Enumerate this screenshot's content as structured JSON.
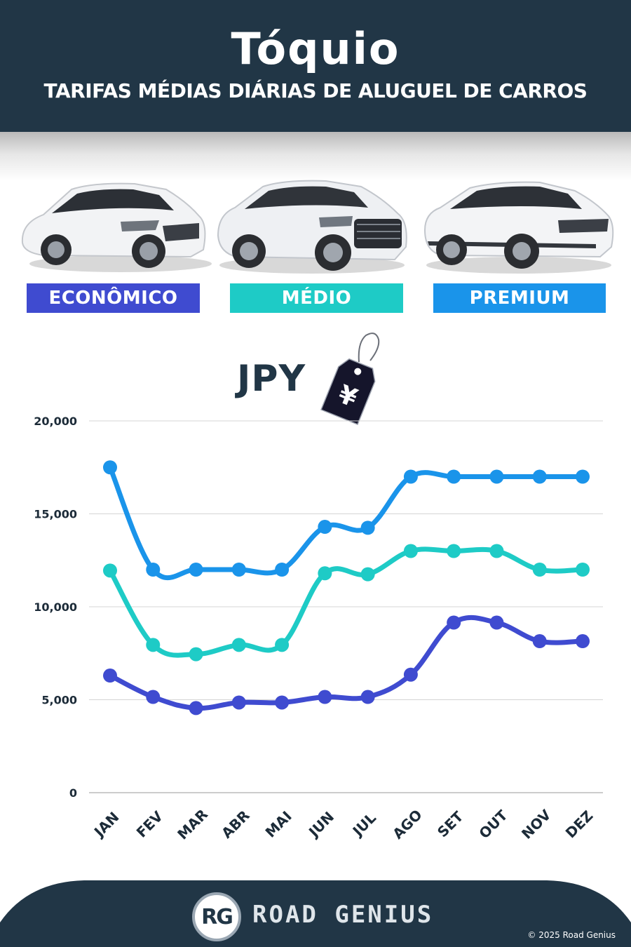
{
  "header": {
    "city": "Tóquio",
    "subtitle": "TARIFAS MÉDIAS DIÁRIAS DE ALUGUEL DE CARROS"
  },
  "categories": [
    {
      "label": "ECONÔMICO",
      "color": "#3f4bd0"
    },
    {
      "label": "MÉDIO",
      "color": "#1ecbc6"
    },
    {
      "label": "PREMIUM",
      "color": "#1a94ea"
    }
  ],
  "currency": {
    "label": "JPY",
    "symbol": "¥"
  },
  "chart_data": {
    "type": "line",
    "x": [
      "JAN",
      "FEV",
      "MAR",
      "ABR",
      "MAI",
      "JUN",
      "JUL",
      "AGO",
      "SET",
      "OUT",
      "NOV",
      "DEZ"
    ],
    "ylim": [
      0,
      20000
    ],
    "yticks": [
      0,
      5000,
      10000,
      15000,
      20000
    ],
    "ytick_labels": [
      "0",
      "5,000",
      "10,000",
      "15,000",
      "20,000"
    ],
    "grid": true,
    "series": [
      {
        "name": "ECONÔMICO",
        "color": "#3f4bd0",
        "values": [
          6300,
          5150,
          4550,
          4850,
          4850,
          5150,
          5150,
          6350,
          9150,
          9150,
          8150,
          8150
        ]
      },
      {
        "name": "MÉDIO",
        "color": "#1ecbc6",
        "values": [
          11950,
          7950,
          7450,
          7950,
          7950,
          11800,
          11750,
          13000,
          13000,
          13000,
          12000,
          12000
        ]
      },
      {
        "name": "PREMIUM",
        "color": "#1a94ea",
        "values": [
          17500,
          12000,
          12000,
          12000,
          12000,
          14300,
          14250,
          17000,
          17000,
          17000,
          17000,
          17000
        ]
      }
    ]
  },
  "footer": {
    "logo_text": "RG",
    "brand": "ROAD GENIUS",
    "copyright": "© 2025 Road Genius"
  }
}
